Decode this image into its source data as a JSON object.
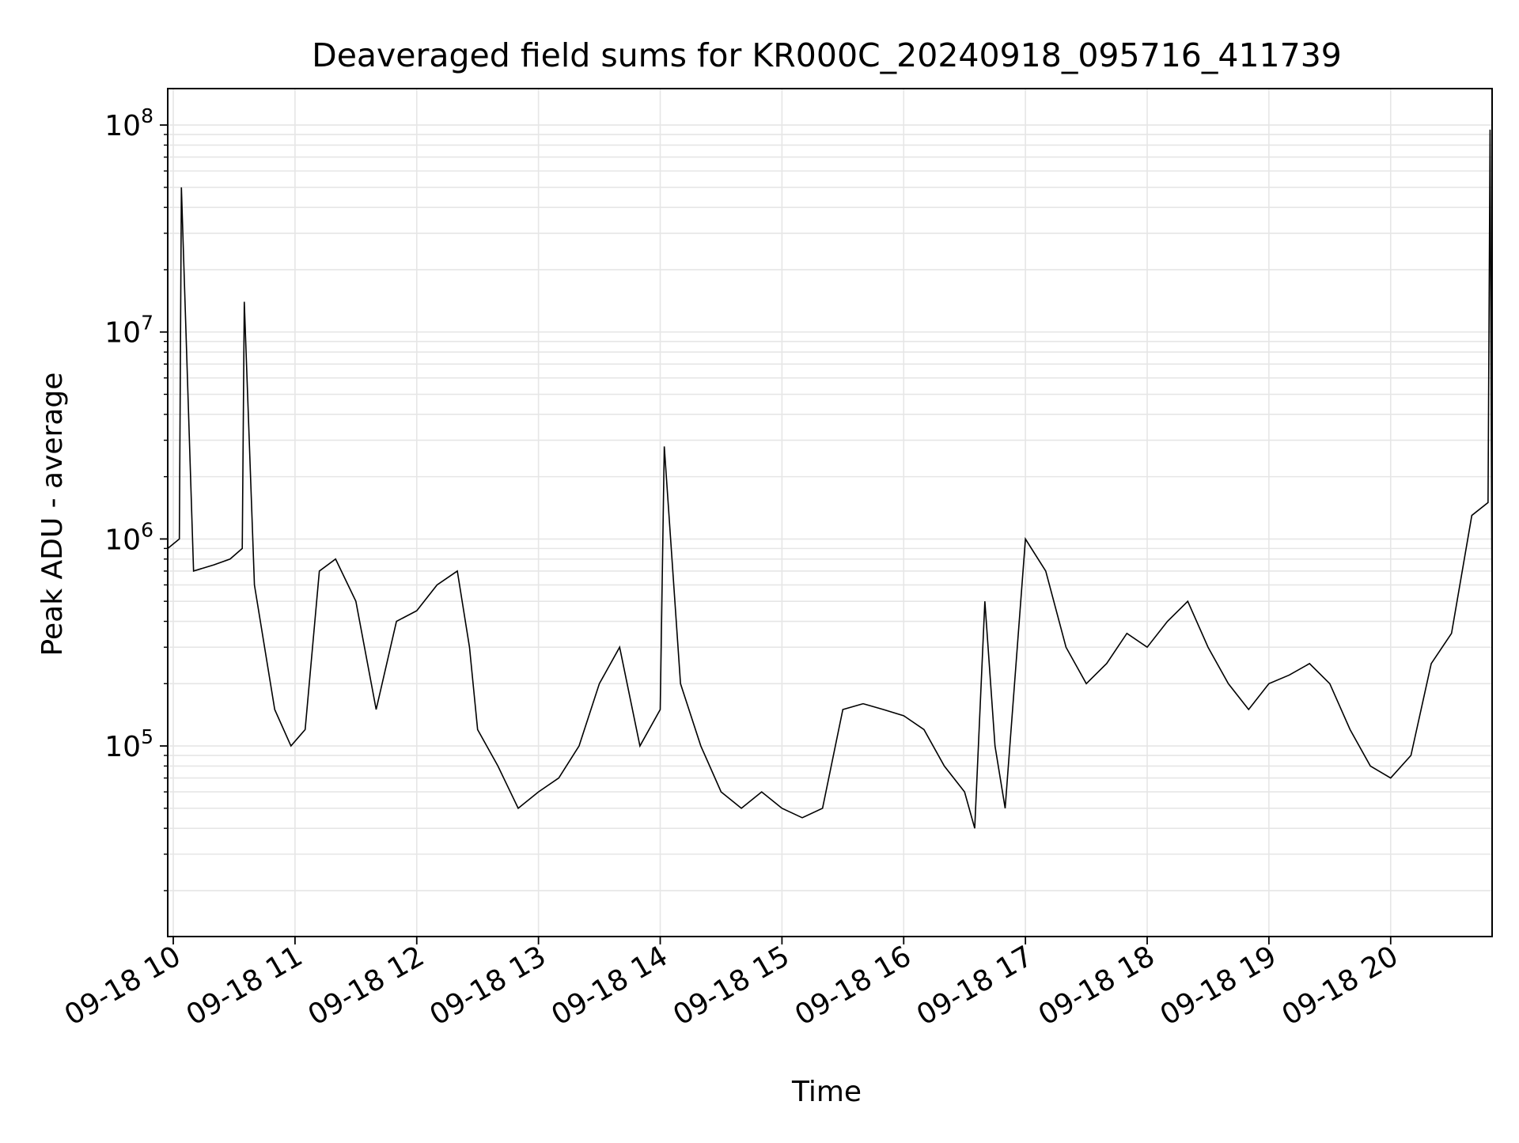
{
  "chart_data": {
    "type": "line",
    "title": "Deaveraged field sums for KR000C_20240918_095716_411739",
    "xlabel": "Time",
    "ylabel": "Peak ADU - average",
    "yscale": "log",
    "ylim": [
      12000,
      150000000
    ],
    "xlim": [
      "2024-09-18T09:57:16",
      "2024-09-18T20:50:00"
    ],
    "grid": true,
    "legend": "none",
    "line_color": "#000000",
    "grid_color": "#e6e6e6",
    "xtick_labels": [
      {
        "t": "2024-09-18T10:00",
        "label": "09-18 10"
      },
      {
        "t": "2024-09-18T11:00",
        "label": "09-18 11"
      },
      {
        "t": "2024-09-18T12:00",
        "label": "09-18 12"
      },
      {
        "t": "2024-09-18T13:00",
        "label": "09-18 13"
      },
      {
        "t": "2024-09-18T14:00",
        "label": "09-18 14"
      },
      {
        "t": "2024-09-18T15:00",
        "label": "09-18 15"
      },
      {
        "t": "2024-09-18T16:00",
        "label": "09-18 16"
      },
      {
        "t": "2024-09-18T17:00",
        "label": "09-18 17"
      },
      {
        "t": "2024-09-18T18:00",
        "label": "09-18 18"
      },
      {
        "t": "2024-09-18T19:00",
        "label": "09-18 19"
      },
      {
        "t": "2024-09-18T20:00",
        "label": "09-18 20"
      }
    ],
    "ytick_labels": [
      {
        "v": 100000,
        "base": "10",
        "exp": "5"
      },
      {
        "v": 1000000,
        "base": "10",
        "exp": "6"
      },
      {
        "v": 10000000,
        "base": "10",
        "exp": "7"
      },
      {
        "v": 100000000,
        "base": "10",
        "exp": "8"
      }
    ],
    "series": [
      {
        "x": [
          "2024-09-18T09:57:16",
          "2024-09-18T10:03",
          "2024-09-18T10:04",
          "2024-09-18T10:10",
          "2024-09-18T10:20",
          "2024-09-18T10:28",
          "2024-09-18T10:34",
          "2024-09-18T10:35",
          "2024-09-18T10:40",
          "2024-09-18T10:50",
          "2024-09-18T10:58",
          "2024-09-18T11:05",
          "2024-09-18T11:12",
          "2024-09-18T11:20",
          "2024-09-18T11:30",
          "2024-09-18T11:40",
          "2024-09-18T11:50",
          "2024-09-18T12:00",
          "2024-09-18T12:10",
          "2024-09-18T12:20",
          "2024-09-18T12:26",
          "2024-09-18T12:30",
          "2024-09-18T12:40",
          "2024-09-18T12:50",
          "2024-09-18T13:00",
          "2024-09-18T13:10",
          "2024-09-18T13:20",
          "2024-09-18T13:30",
          "2024-09-18T13:40",
          "2024-09-18T13:50",
          "2024-09-18T14:00",
          "2024-09-18T14:02",
          "2024-09-18T14:10",
          "2024-09-18T14:20",
          "2024-09-18T14:30",
          "2024-09-18T14:40",
          "2024-09-18T14:50",
          "2024-09-18T15:00",
          "2024-09-18T15:10",
          "2024-09-18T15:20",
          "2024-09-18T15:30",
          "2024-09-18T15:40",
          "2024-09-18T15:50",
          "2024-09-18T16:00",
          "2024-09-18T16:10",
          "2024-09-18T16:20",
          "2024-09-18T16:30",
          "2024-09-18T16:35",
          "2024-09-18T16:40",
          "2024-09-18T16:45",
          "2024-09-18T16:50",
          "2024-09-18T17:00",
          "2024-09-18T17:10",
          "2024-09-18T17:20",
          "2024-09-18T17:30",
          "2024-09-18T17:40",
          "2024-09-18T17:50",
          "2024-09-18T18:00",
          "2024-09-18T18:10",
          "2024-09-18T18:20",
          "2024-09-18T18:30",
          "2024-09-18T18:40",
          "2024-09-18T18:50",
          "2024-09-18T19:00",
          "2024-09-18T19:10",
          "2024-09-18T19:20",
          "2024-09-18T19:30",
          "2024-09-18T19:40",
          "2024-09-18T19:50",
          "2024-09-18T20:00",
          "2024-09-18T20:10",
          "2024-09-18T20:20",
          "2024-09-18T20:30",
          "2024-09-18T20:40",
          "2024-09-18T20:48",
          "2024-09-18T20:49",
          "2024-09-18T20:50"
        ],
        "y": [
          900000,
          1000000,
          50000000,
          700000,
          750000,
          800000,
          900000,
          14000000,
          600000,
          150000,
          100000,
          120000,
          700000,
          800000,
          500000,
          150000,
          400000,
          450000,
          600000,
          700000,
          300000,
          120000,
          80000,
          50000,
          60000,
          70000,
          100000,
          200000,
          300000,
          100000,
          150000,
          2800000,
          200000,
          100000,
          60000,
          50000,
          60000,
          50000,
          45000,
          50000,
          150000,
          160000,
          150000,
          140000,
          120000,
          80000,
          60000,
          40000,
          500000,
          100000,
          50000,
          1000000,
          700000,
          300000,
          200000,
          250000,
          350000,
          300000,
          400000,
          500000,
          300000,
          200000,
          150000,
          200000,
          220000,
          250000,
          200000,
          120000,
          80000,
          70000,
          90000,
          250000,
          350000,
          1300000,
          1500000,
          95000000,
          400000
        ]
      }
    ]
  }
}
